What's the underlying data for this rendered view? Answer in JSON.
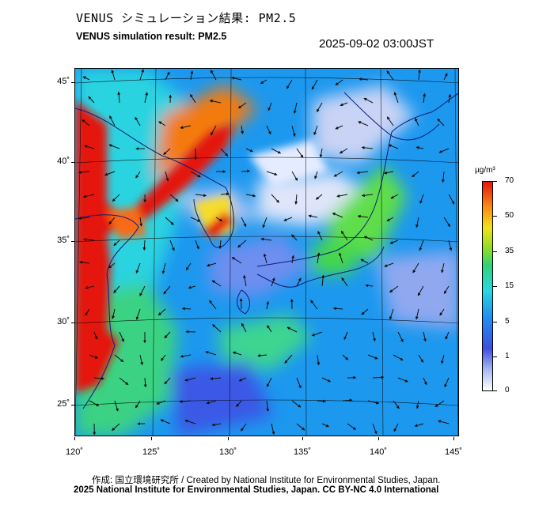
{
  "header": {
    "title_jp": "VENUS シミュレーション結果: PM2.5",
    "title_en": "VENUS simulation result: PM2.5",
    "timestamp": "2025-09-02 03:00JST"
  },
  "map": {
    "lat_labels": [
      "45˚",
      "40˚",
      "35˚",
      "30˚",
      "25˚"
    ],
    "lon_labels": [
      "120˚",
      "125˚",
      "130˚",
      "135˚",
      "140˚",
      "145˚"
    ],
    "features": [
      "pm25-concentration-field",
      "wind-vector-arrows",
      "coastlines",
      "lat-lon-gridlines"
    ]
  },
  "colorbar": {
    "unit": "µg/m³",
    "labels": [
      "70",
      "50",
      "35",
      "15",
      "5",
      "1",
      "0"
    ],
    "colors": [
      "#e4140e",
      "#fa8a14",
      "#f2e21c",
      "#8fdc28",
      "#28d7e2",
      "#1f8ff0",
      "#3f4fe2",
      "#a7b8f0",
      "#ffffff"
    ]
  },
  "footer": {
    "credit_line1": "作成: 国立環境研究所 / Created by National Institute for Environmental Studies, Japan.",
    "credit_line2": "2025 National Institute for Environmental Studies, Japan. CC BY-NC 4.0 International"
  }
}
